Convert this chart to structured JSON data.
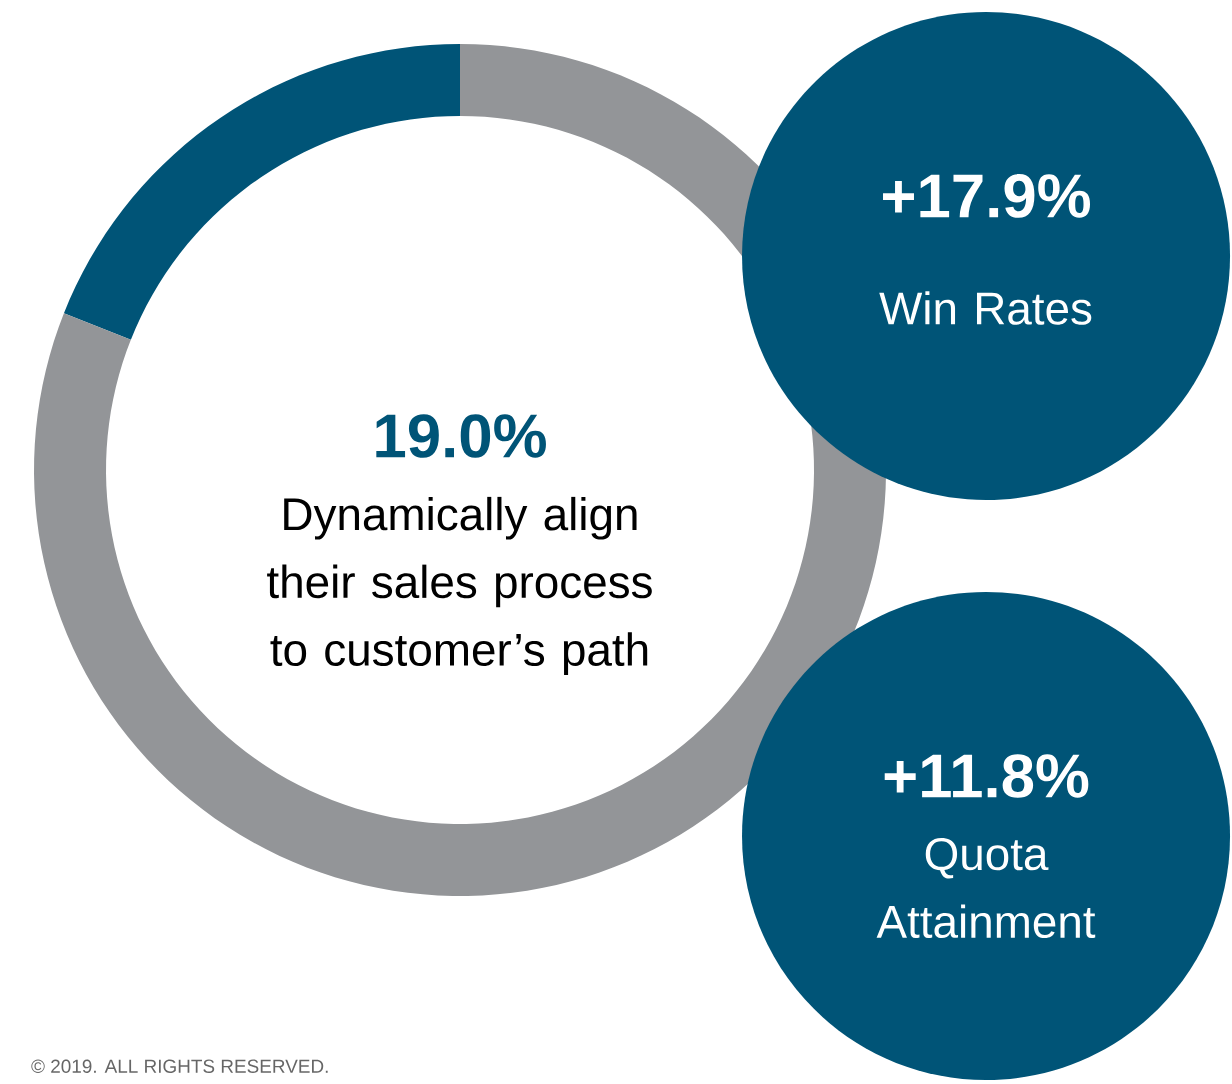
{
  "chart_data": [
    {
      "type": "donut",
      "title": "Dynamically align their sales process to customer’s path",
      "categories": [
        null,
        null
      ],
      "values": [
        19.0,
        81.0
      ],
      "colors": [
        "#005477",
        "#939598"
      ],
      "value_labels": [
        "19.0%",
        null
      ],
      "annotations": [
        "© 2019. ALL RIGHTS RESERVED."
      ]
    },
    {
      "type": "other",
      "categories": [
        "Win Rates",
        "Quota Attainment"
      ],
      "values": [
        17.9,
        11.8
      ],
      "value_labels": [
        "+17.9%",
        "+11.8%"
      ],
      "colors": [
        "#005477",
        "#005477"
      ]
    }
  ]
}
